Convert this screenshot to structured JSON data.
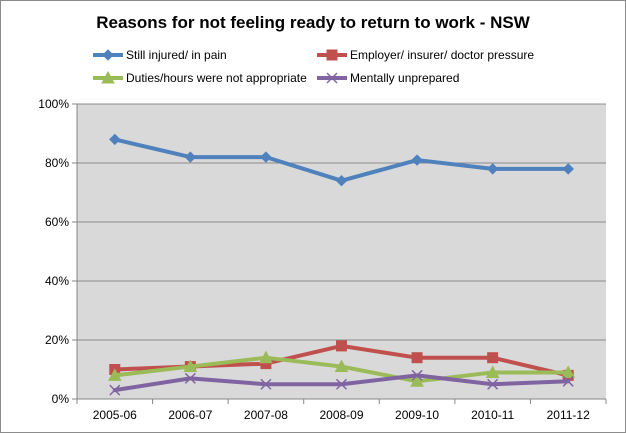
{
  "chart_data": {
    "type": "line",
    "title": "Reasons for not feeling ready to return to work - NSW",
    "xlabel": "",
    "ylabel": "",
    "categories": [
      "2005-06",
      "2006-07",
      "2007-08",
      "2008-09",
      "2009-10",
      "2010-11",
      "2011-12"
    ],
    "y_ticks": [
      "0%",
      "20%",
      "40%",
      "60%",
      "80%",
      "100%"
    ],
    "ylim": [
      0,
      100
    ],
    "grid": true,
    "legend_position": "top",
    "series": [
      {
        "name": "Still injured/ in pain",
        "values": [
          88,
          82,
          82,
          74,
          81,
          78,
          78
        ],
        "color": "#4f81bd",
        "marker": "diamond"
      },
      {
        "name": "Employer/ insurer/ doctor pressure",
        "values": [
          10,
          11,
          12,
          18,
          14,
          14,
          8
        ],
        "color": "#c0504d",
        "marker": "square"
      },
      {
        "name": "Duties/hours were not appropriate",
        "values": [
          8,
          11,
          14,
          11,
          6,
          9,
          9
        ],
        "color": "#9bbb59",
        "marker": "triangle"
      },
      {
        "name": "Mentally unprepared",
        "values": [
          3,
          7,
          5,
          5,
          8,
          5,
          6
        ],
        "color": "#8064a2",
        "marker": "x"
      }
    ],
    "plot_background": "#d9d9d9",
    "gridline_color": "#8c8c8c"
  }
}
